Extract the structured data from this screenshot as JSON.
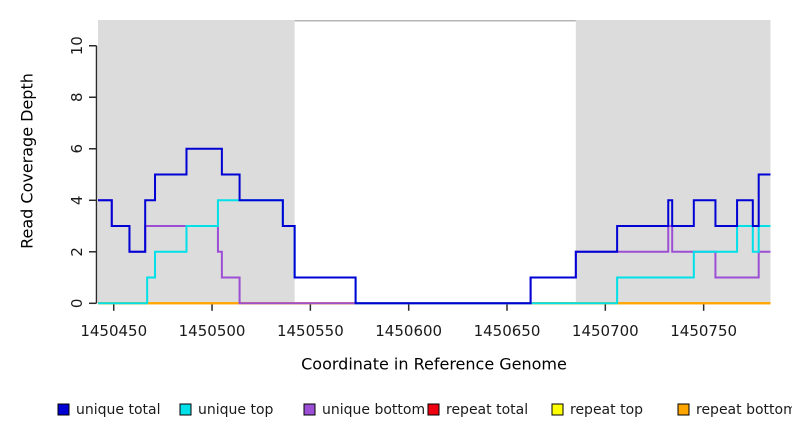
{
  "chart_data": {
    "type": "step-line",
    "title": "",
    "xlabel": "Coordinate in Reference Genome",
    "ylabel": "Read Coverage Depth",
    "xlim": [
      1450442,
      1450784
    ],
    "ylim": [
      0,
      11
    ],
    "x_ticks": [
      1450450,
      1450500,
      1450550,
      1450600,
      1450650,
      1450700,
      1450750
    ],
    "y_ticks": [
      0,
      2,
      4,
      6,
      8,
      10
    ],
    "grid": "off",
    "region_color": "#DCDCDC",
    "gap_border_color": "#B5B5B5",
    "shaded_regions": [
      {
        "x0": 1450442,
        "x1": 1450542
      },
      {
        "x0": 1450685,
        "x1": 1450784
      }
    ],
    "series": [
      {
        "name": "repeat total",
        "color": "#EE0011",
        "points": [
          [
            1450442,
            0
          ],
          [
            1450784,
            0
          ]
        ]
      },
      {
        "name": "repeat top",
        "color": "#FFFF00",
        "points": [
          [
            1450442,
            0
          ],
          [
            1450784,
            0
          ]
        ]
      },
      {
        "name": "repeat bottom",
        "color": "#FFA500",
        "points": [
          [
            1450442,
            0
          ],
          [
            1450784,
            0
          ]
        ]
      },
      {
        "name": "unique bottom",
        "color": "#9C4FD4",
        "points": [
          [
            1450442,
            4
          ],
          [
            1450449,
            3
          ],
          [
            1450458,
            2
          ],
          [
            1450466,
            3
          ],
          [
            1450503,
            2
          ],
          [
            1450505,
            1
          ],
          [
            1450514,
            0
          ],
          [
            1450662,
            1
          ],
          [
            1450685,
            2
          ],
          [
            1450732,
            3
          ],
          [
            1450734,
            2
          ],
          [
            1450756,
            1
          ],
          [
            1450778,
            2
          ],
          [
            1450784,
            2
          ]
        ]
      },
      {
        "name": "unique top",
        "color": "#00E0E8",
        "points": [
          [
            1450442,
            0
          ],
          [
            1450467,
            1
          ],
          [
            1450471,
            2
          ],
          [
            1450487,
            3
          ],
          [
            1450503,
            4
          ],
          [
            1450536,
            3
          ],
          [
            1450542,
            1
          ],
          [
            1450573,
            0
          ],
          [
            1450706,
            1
          ],
          [
            1450745,
            2
          ],
          [
            1450767,
            3
          ],
          [
            1450775,
            2
          ],
          [
            1450778,
            3
          ],
          [
            1450784,
            3
          ]
        ]
      },
      {
        "name": "unique total",
        "color": "#0000D5",
        "points": [
          [
            1450442,
            4
          ],
          [
            1450449,
            3
          ],
          [
            1450458,
            2
          ],
          [
            1450466,
            4
          ],
          [
            1450471,
            5
          ],
          [
            1450487,
            6
          ],
          [
            1450505,
            5
          ],
          [
            1450514,
            4
          ],
          [
            1450536,
            3
          ],
          [
            1450542,
            1
          ],
          [
            1450573,
            0
          ],
          [
            1450662,
            1
          ],
          [
            1450685,
            2
          ],
          [
            1450706,
            3
          ],
          [
            1450732,
            4
          ],
          [
            1450734,
            3
          ],
          [
            1450745,
            4
          ],
          [
            1450756,
            3
          ],
          [
            1450767,
            4
          ],
          [
            1450775,
            3
          ],
          [
            1450778,
            5
          ],
          [
            1450784,
            5
          ]
        ]
      }
    ],
    "legend": [
      {
        "label": "unique total",
        "color": "#0000D5"
      },
      {
        "label": "unique top",
        "color": "#00E0E8"
      },
      {
        "label": "unique bottom",
        "color": "#9C4FD4"
      },
      {
        "label": "repeat total",
        "color": "#EE0011"
      },
      {
        "label": "repeat top",
        "color": "#FFFF00"
      },
      {
        "label": "repeat bottom",
        "color": "#FFA500"
      }
    ],
    "legend_position": "bottom"
  }
}
